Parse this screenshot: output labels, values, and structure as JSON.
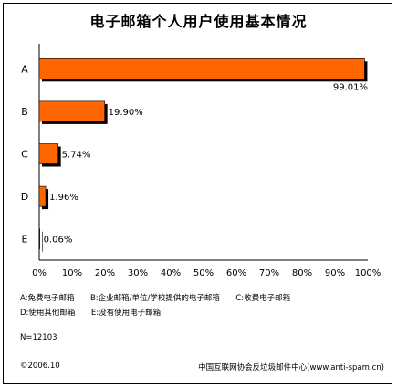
{
  "chart_data": {
    "type": "bar",
    "orientation": "horizontal",
    "title": "电子邮箱个人用户使用基本情况",
    "categories": [
      "A",
      "B",
      "C",
      "D",
      "E"
    ],
    "values": [
      99.01,
      19.9,
      5.74,
      1.96,
      0.06
    ],
    "value_labels": [
      "99.01%",
      "19.90%",
      "5.74%",
      "1.96%",
      "0.06%"
    ],
    "xlim": [
      0,
      100
    ],
    "x_ticks": [
      "0%",
      "10%",
      "20%",
      "30%",
      "40%",
      "50%",
      "60%",
      "70%",
      "80%",
      "90%",
      "100%"
    ],
    "grid": false,
    "bar_color": "#ff6600",
    "shadow_color": "#000000"
  },
  "legend": {
    "line1": [
      "A:免费电子邮箱",
      "B:企业邮箱/单位/学校提供的电子邮箱",
      "C:收费电子邮箱"
    ],
    "line2": [
      "D:使用其他邮箱",
      "E:没有使用电子邮箱"
    ]
  },
  "footer": {
    "n": "N=12103",
    "year": "©2006.10",
    "source": "中国互联网协会反垃圾邮件中心(www.anti-spam.cn)"
  }
}
